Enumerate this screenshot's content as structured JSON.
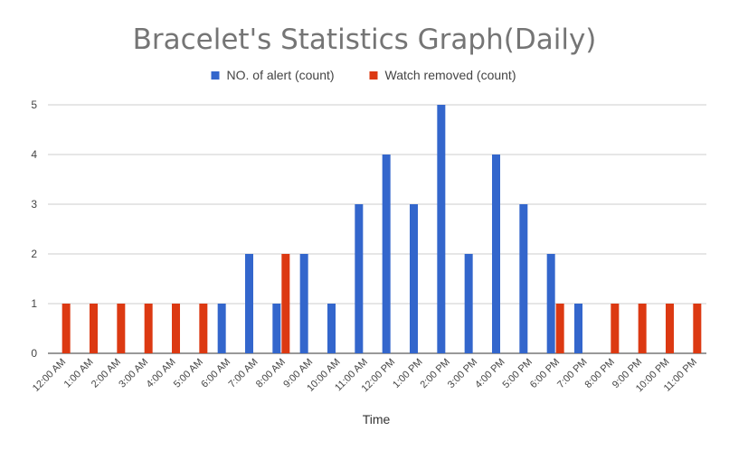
{
  "chart_data": {
    "type": "bar",
    "title": "Bracelet's Statistics Graph(Daily)",
    "xlabel": "Time",
    "ylabel": "",
    "ylim": [
      0,
      5
    ],
    "yticks": [
      0,
      1,
      2,
      3,
      4,
      5
    ],
    "grid": true,
    "legend": "top",
    "categories": [
      "12:00 AM",
      "1:00 AM",
      "2:00 AM",
      "3:00 AM",
      "4:00 AM",
      "5:00 AM",
      "6:00 AM",
      "7:00 AM",
      "8:00 AM",
      "9:00 AM",
      "10:00 AM",
      "11:00 AM",
      "12:00 PM",
      "1:00 PM",
      "2:00 PM",
      "3:00 PM",
      "4:00 PM",
      "5:00 PM",
      "6:00 PM",
      "7:00 PM",
      "8:00 PM",
      "9:00 PM",
      "10:00 PM",
      "11:00 PM"
    ],
    "series": [
      {
        "name": "NO. of alert (count)",
        "color": "#3366cc",
        "values": [
          0,
          0,
          0,
          0,
          0,
          0,
          1,
          2,
          1,
          2,
          1,
          3,
          4,
          3,
          5,
          2,
          4,
          3,
          2,
          1,
          0,
          0,
          0,
          0
        ]
      },
      {
        "name": "Watch removed (count)",
        "color": "#dc3912",
        "values": [
          1,
          1,
          1,
          1,
          1,
          1,
          0,
          0,
          2,
          0,
          0,
          0,
          0,
          0,
          0,
          0,
          0,
          0,
          1,
          0,
          1,
          1,
          1,
          1
        ]
      }
    ]
  }
}
